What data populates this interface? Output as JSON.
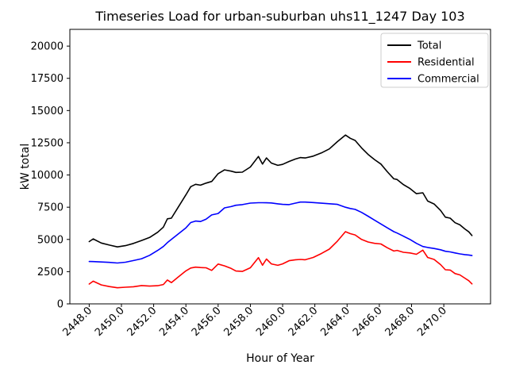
{
  "title": "Timeseries Load for urban-suburban uhs11_1247  Day 103",
  "xlabel": "Hour of Year",
  "ylabel": "kW total",
  "legend": {
    "position": "upper right",
    "items": [
      {
        "label": "Total",
        "color": "#000000"
      },
      {
        "label": "Residential",
        "color": "#ff0000"
      },
      {
        "label": "Commercial",
        "color": "#0000ff"
      }
    ]
  },
  "chart_data": {
    "type": "line",
    "title": "Timeseries Load for urban-suburban uhs11_1247  Day 103",
    "xlabel": "Hour of Year",
    "ylabel": "kW total",
    "grid": false,
    "legend_position": "upper right",
    "xlim": [
      2446.8,
      2472.9
    ],
    "ylim": [
      0,
      21300
    ],
    "xticks": [
      2448.0,
      2450.0,
      2452.0,
      2454.0,
      2456.0,
      2458.0,
      2460.0,
      2462.0,
      2464.0,
      2466.0,
      2468.0,
      2470.0
    ],
    "xtick_labels": [
      "2448.0",
      "2450.0",
      "2452.0",
      "2454.0",
      "2456.0",
      "2458.0",
      "2460.0",
      "2462.0",
      "2464.0",
      "2466.0",
      "2468.0",
      "2470.0"
    ],
    "yticks": [
      0,
      2500,
      5000,
      7500,
      10000,
      12500,
      15000,
      17500,
      20000
    ],
    "ytick_labels": [
      "0",
      "2500",
      "5000",
      "7500",
      "10000",
      "12500",
      "15000",
      "17500",
      "20000"
    ],
    "x": [
      2448.0,
      2448.25,
      2448.75,
      2449.25,
      2449.75,
      2450.25,
      2450.75,
      2451.25,
      2451.75,
      2452.25,
      2452.6,
      2452.85,
      2453.1,
      2453.5,
      2454.0,
      2454.3,
      2454.6,
      2454.9,
      2455.25,
      2455.6,
      2456.0,
      2456.4,
      2456.8,
      2457.1,
      2457.5,
      2458.0,
      2458.5,
      2458.75,
      2459.0,
      2459.3,
      2459.7,
      2460.0,
      2460.4,
      2460.8,
      2461.1,
      2461.4,
      2461.9,
      2462.4,
      2462.9,
      2463.4,
      2463.9,
      2464.2,
      2464.5,
      2464.9,
      2465.3,
      2465.7,
      2466.1,
      2466.5,
      2466.9,
      2467.1,
      2467.5,
      2467.9,
      2468.3,
      2468.7,
      2469.0,
      2469.4,
      2469.8,
      2470.1,
      2470.4,
      2470.7,
      2471.0,
      2471.3,
      2471.55,
      2471.75
    ],
    "series": [
      {
        "name": "Total",
        "color": "#000000",
        "values": [
          4830,
          5040,
          4720,
          4560,
          4420,
          4520,
          4690,
          4920,
          5150,
          5560,
          5950,
          6600,
          6650,
          7460,
          8460,
          9090,
          9280,
          9210,
          9370,
          9500,
          10100,
          10400,
          10300,
          10200,
          10220,
          10620,
          11440,
          10850,
          11320,
          10930,
          10750,
          10820,
          11050,
          11240,
          11350,
          11320,
          11460,
          11710,
          12020,
          12590,
          13100,
          12850,
          12680,
          12100,
          11600,
          11200,
          10850,
          10250,
          9700,
          9650,
          9250,
          8950,
          8550,
          8620,
          7980,
          7750,
          7250,
          6730,
          6650,
          6300,
          6130,
          5820,
          5590,
          5300
        ]
      },
      {
        "name": "Residential",
        "color": "#ff0000",
        "values": [
          1540,
          1760,
          1470,
          1340,
          1250,
          1290,
          1330,
          1420,
          1380,
          1410,
          1500,
          1850,
          1650,
          2060,
          2560,
          2780,
          2850,
          2820,
          2800,
          2600,
          3090,
          2950,
          2750,
          2550,
          2520,
          2800,
          3590,
          3000,
          3480,
          3100,
          2990,
          3100,
          3350,
          3420,
          3450,
          3420,
          3600,
          3900,
          4250,
          4870,
          5600,
          5450,
          5350,
          5000,
          4800,
          4700,
          4650,
          4350,
          4100,
          4150,
          4000,
          3950,
          3850,
          4170,
          3600,
          3450,
          3050,
          2650,
          2620,
          2350,
          2250,
          2000,
          1800,
          1550
        ]
      },
      {
        "name": "Commercial",
        "color": "#0000ff",
        "values": [
          3290,
          3280,
          3250,
          3220,
          3170,
          3230,
          3360,
          3500,
          3770,
          4150,
          4450,
          4750,
          5000,
          5400,
          5900,
          6310,
          6430,
          6390,
          6570,
          6900,
          7010,
          7450,
          7550,
          7650,
          7700,
          7820,
          7850,
          7850,
          7840,
          7830,
          7760,
          7720,
          7700,
          7820,
          7900,
          7900,
          7860,
          7810,
          7770,
          7720,
          7500,
          7400,
          7330,
          7100,
          6800,
          6500,
          6200,
          5900,
          5600,
          5500,
          5250,
          5000,
          4700,
          4450,
          4380,
          4300,
          4200,
          4080,
          4030,
          3950,
          3880,
          3820,
          3790,
          3750
        ]
      }
    ]
  }
}
